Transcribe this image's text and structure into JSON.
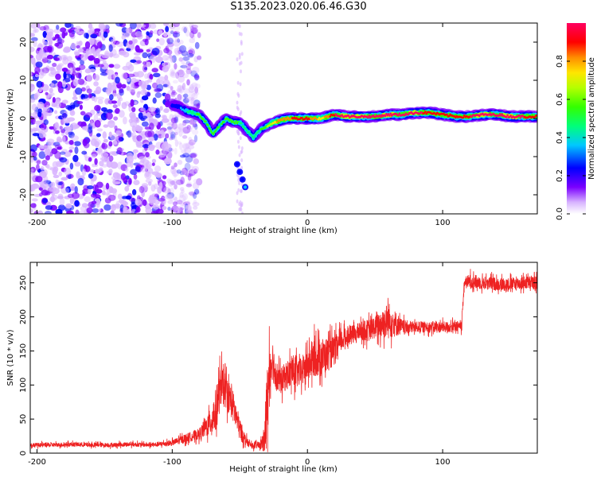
{
  "figure_title": "S135.2023.020.06.46.G30",
  "colors": {
    "snr_line": "#ee2222",
    "frame": "#000000"
  },
  "chart_data": [
    {
      "type": "heatmap",
      "xlabel": "Height of straight line (km)",
      "ylabel": "Frequency (Hz)",
      "xlim": [
        -205,
        170
      ],
      "ylim": [
        -25,
        25
      ],
      "xticks": [
        -200,
        -100,
        0,
        100
      ],
      "yticks": [
        -20,
        -10,
        0,
        10,
        20
      ],
      "colorbar": {
        "label": "Normalized spectral amplitude",
        "range": [
          0,
          1
        ],
        "ticks": [
          "0.0",
          "0.2",
          "0.4",
          "0.6",
          "0.8"
        ],
        "tick_values": [
          0,
          0.2,
          0.4,
          0.6,
          0.8
        ],
        "colormap": "gist_rainbow_r"
      },
      "ridge": {
        "description_values": "peak frequency (Hz) vs height (km)",
        "x": [
          -100,
          -95,
          -90,
          -85,
          -80,
          -75,
          -70,
          -65,
          -60,
          -55,
          -50,
          -45,
          -40,
          -35,
          -30,
          -25,
          -20,
          -15,
          -10,
          -5,
          0,
          10,
          20,
          30,
          40,
          50,
          60,
          70,
          80,
          90,
          100,
          110,
          120,
          130,
          140,
          150,
          160,
          170
        ],
        "y": [
          3.5,
          3,
          2,
          1.5,
          1,
          -1,
          -4,
          -2,
          0,
          -1,
          -1,
          -3,
          -5,
          -3,
          -2,
          -1,
          -0.5,
          0,
          0,
          0,
          0,
          0,
          1,
          0.5,
          0.5,
          0.5,
          1,
          1,
          1.5,
          1.5,
          1,
          0.5,
          0.5,
          1,
          1,
          0.5,
          0.5,
          0.5
        ],
        "amplitude": [
          0.2,
          0.2,
          0.35,
          0.4,
          0.5,
          0.5,
          0.55,
          0.45,
          0.5,
          0.5,
          0.45,
          0.4,
          0.4,
          0.45,
          0.55,
          0.7,
          0.8,
          0.75,
          0.85,
          0.9,
          0.85,
          0.7,
          0.9,
          0.95,
          0.95,
          0.9,
          0.95,
          0.9,
          0.95,
          0.85,
          0.9,
          0.85,
          0.9,
          0.95,
          0.9,
          0.95,
          0.9,
          0.9
        ]
      },
      "noise_region_x": [
        -205,
        -88
      ],
      "secondary_feature": {
        "x": [
          -52,
          -50,
          -48,
          -46
        ],
        "y": [
          -12,
          -14,
          -16,
          -18
        ]
      }
    },
    {
      "type": "line",
      "xlabel": "Height of straight line (km)",
      "ylabel": "SNR (10 * v/v)",
      "xlim": [
        -205,
        170
      ],
      "ylim": [
        0,
        280
      ],
      "xticks": [
        -200,
        -100,
        0,
        100
      ],
      "yticks": [
        0,
        50,
        100,
        150,
        200,
        250
      ],
      "series": [
        {
          "x": [
            -205,
            -190,
            -175,
            -160,
            -145,
            -130,
            -115,
            -100,
            -90,
            -80,
            -72,
            -68,
            -64,
            -60,
            -56,
            -50,
            -46,
            -44,
            -42,
            -40,
            -36,
            -32,
            -30,
            -28,
            -26,
            -24,
            -22,
            -20,
            -15,
            -10,
            -5,
            0,
            5,
            10,
            15,
            20,
            25,
            30,
            35,
            40,
            45,
            50,
            55,
            60,
            65,
            70,
            80,
            90,
            100,
            110,
            114,
            116,
            120,
            130,
            140,
            150,
            160,
            170
          ],
          "y": [
            12,
            12,
            13,
            12,
            12,
            13,
            12,
            15,
            22,
            28,
            45,
            60,
            100,
            90,
            75,
            35,
            20,
            15,
            12,
            10,
            12,
            15,
            60,
            120,
            140,
            120,
            110,
            105,
            115,
            120,
            118,
            130,
            140,
            140,
            145,
            150,
            165,
            172,
            175,
            180,
            180,
            185,
            190,
            195,
            190,
            185,
            185,
            185,
            185,
            185,
            188,
            250,
            252,
            250,
            248,
            248,
            250,
            250
          ],
          "noise_amplitude": [
            6,
            6,
            6,
            6,
            6,
            6,
            6,
            8,
            12,
            15,
            35,
            60,
            55,
            45,
            45,
            30,
            15,
            10,
            8,
            8,
            10,
            25,
            120,
            90,
            60,
            45,
            40,
            35,
            40,
            45,
            40,
            45,
            50,
            55,
            45,
            40,
            30,
            25,
            25,
            25,
            30,
            30,
            40,
            50,
            35,
            20,
            15,
            15,
            15,
            15,
            15,
            15,
            20,
            18,
            18,
            18,
            18,
            18
          ]
        }
      ]
    }
  ]
}
